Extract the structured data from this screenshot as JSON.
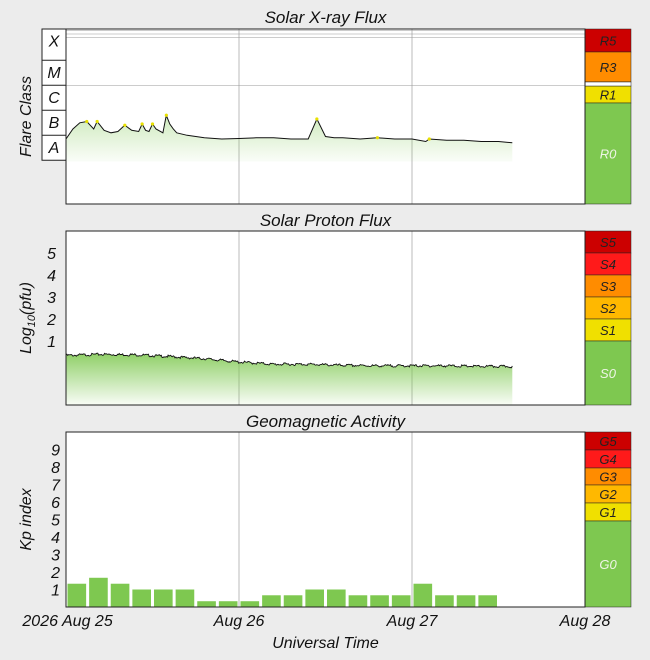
{
  "chart_data": [
    {
      "title": "Solar X-ray Flux",
      "type": "area",
      "ylabel": "Flare Class",
      "ylim_log10_wm2": [
        -9,
        -2
      ],
      "classes": [
        "A",
        "B",
        "C",
        "M",
        "X"
      ],
      "x_unit": "days since Aug 25 00:00 UT (2026)",
      "x": [
        0.0,
        0.04,
        0.08,
        0.12,
        0.16,
        0.18,
        0.22,
        0.26,
        0.3,
        0.34,
        0.38,
        0.42,
        0.44,
        0.46,
        0.48,
        0.5,
        0.52,
        0.56,
        0.58,
        0.6,
        0.62,
        0.64,
        0.7,
        0.75,
        0.8,
        0.9,
        1.0,
        1.1,
        1.2,
        1.3,
        1.4,
        1.45,
        1.5,
        1.55,
        1.6,
        1.7,
        1.8,
        1.9,
        2.0,
        2.08,
        2.1,
        2.2,
        2.3,
        2.4,
        2.5,
        2.58
      ],
      "values_log10_wm2": [
        -6.4,
        -6.0,
        -5.75,
        -5.7,
        -6.0,
        -5.7,
        -6.05,
        -6.15,
        -6.1,
        -5.85,
        -6.05,
        -6.1,
        -5.8,
        -6.05,
        -6.1,
        -5.8,
        -6.0,
        -6.15,
        -5.45,
        -5.8,
        -6.0,
        -6.15,
        -6.25,
        -6.3,
        -6.35,
        -6.4,
        -6.38,
        -6.35,
        -6.35,
        -6.4,
        -6.4,
        -5.6,
        -6.3,
        -6.35,
        -6.35,
        -6.4,
        -6.35,
        -6.4,
        -6.4,
        -6.5,
        -6.4,
        -6.45,
        -6.45,
        -6.5,
        -6.5,
        -6.55
      ],
      "scale": [
        {
          "label": "R5",
          "color": "#cc0000"
        },
        {
          "label": "R3",
          "color": "#ff8c00"
        },
        {
          "label": "R1",
          "color": "#f0e000"
        },
        {
          "label": "R0",
          "color": "#7ec850"
        }
      ]
    },
    {
      "title": "Solar Proton Flux",
      "type": "area",
      "ylabel_main": "Log",
      "ylabel_sub": "10",
      "ylabel_rest": "(pfu)",
      "yticks": [
        "1",
        "2",
        "3",
        "4",
        "5"
      ],
      "ylim_log10_pfu": [
        -1.9,
        6
      ],
      "x_unit": "days since Aug 25 00:00 UT (2026)",
      "x": [
        0.0,
        0.2,
        0.4,
        0.6,
        0.8,
        1.0,
        1.2,
        1.4,
        1.6,
        1.8,
        2.0,
        2.2,
        2.4,
        2.58
      ],
      "values_log10_pfu": [
        0.35,
        0.4,
        0.38,
        0.3,
        0.2,
        0.05,
        -0.05,
        -0.05,
        -0.1,
        -0.12,
        -0.12,
        -0.12,
        -0.15,
        -0.15
      ],
      "scale": [
        {
          "label": "S5",
          "color": "#cc0000"
        },
        {
          "label": "S4",
          "color": "#ff1a1a"
        },
        {
          "label": "S3",
          "color": "#ff8c00"
        },
        {
          "label": "S2",
          "color": "#ffb800"
        },
        {
          "label": "S1",
          "color": "#f0e000"
        },
        {
          "label": "S0",
          "color": "#7ec850"
        }
      ]
    },
    {
      "title": "Geomagnetic Activity",
      "type": "bar",
      "ylabel": "Kp index",
      "yticks": [
        "1",
        "2",
        "3",
        "4",
        "5",
        "6",
        "7",
        "8",
        "9"
      ],
      "ylim": [
        0,
        10
      ],
      "x_unit": "days since Aug 25 00:00 UT (2026)",
      "bar_width_days": 0.125,
      "bar_starts": [
        0.0,
        0.125,
        0.25,
        0.375,
        0.5,
        0.625,
        0.75,
        0.875,
        1.0,
        1.125,
        1.25,
        1.375,
        1.5,
        1.625,
        1.75,
        1.875,
        2.0,
        2.125,
        2.25,
        2.375
      ],
      "values": [
        1.33,
        1.67,
        1.33,
        1.0,
        1.0,
        1.0,
        0.33,
        0.33,
        0.33,
        0.67,
        0.67,
        1.0,
        1.0,
        0.67,
        0.67,
        0.67,
        1.33,
        0.67,
        0.67,
        0.67
      ],
      "scale": [
        {
          "label": "G5",
          "color": "#cc0000"
        },
        {
          "label": "G4",
          "color": "#ff1a1a"
        },
        {
          "label": "G3",
          "color": "#ff8c00"
        },
        {
          "label": "G2",
          "color": "#ffb800"
        },
        {
          "label": "G1",
          "color": "#f0e000"
        },
        {
          "label": "G0",
          "color": "#7ec850"
        }
      ]
    }
  ],
  "x_axis": {
    "xlabel": "Universal Time",
    "xlim_days": [
      0,
      3
    ],
    "year_label": "2026",
    "ticks": [
      {
        "label": "Aug 25",
        "day": 0
      },
      {
        "label": "Aug 26",
        "day": 1
      },
      {
        "label": "Aug 27",
        "day": 2
      },
      {
        "label": "Aug 28",
        "day": 3
      }
    ]
  },
  "colors": {
    "fill_green": "#7ec850",
    "line": "#111111",
    "flare_peak": "#e8e000",
    "grid": "#bbbbbb"
  }
}
